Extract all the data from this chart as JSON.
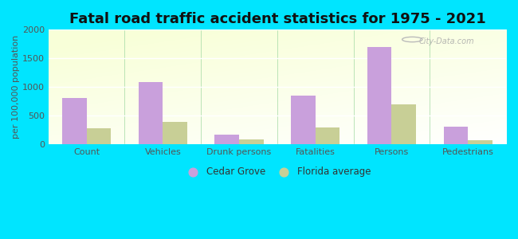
{
  "title": "Fatal road traffic accident statistics for 1975 - 2021",
  "ylabel": "per 100,000 population",
  "categories": [
    "Count",
    "Vehicles",
    "Drunk persons",
    "Fatalities",
    "Persons",
    "Pedestrians"
  ],
  "cedar_grove": [
    800,
    1080,
    170,
    850,
    1700,
    310
  ],
  "florida_avg": [
    270,
    390,
    80,
    290,
    690,
    70
  ],
  "cedar_grove_color": "#c9a0dc",
  "florida_avg_color": "#c8cf96",
  "ylim": [
    0,
    2000
  ],
  "yticks": [
    0,
    500,
    1000,
    1500,
    2000
  ],
  "outer_bg": "#00e5ff",
  "legend_cedar": "Cedar Grove",
  "legend_florida": "Florida average",
  "watermark": "City-Data.com",
  "bar_width": 0.32,
  "title_fontsize": 13,
  "axis_label_fontsize": 8,
  "tick_fontsize": 8
}
